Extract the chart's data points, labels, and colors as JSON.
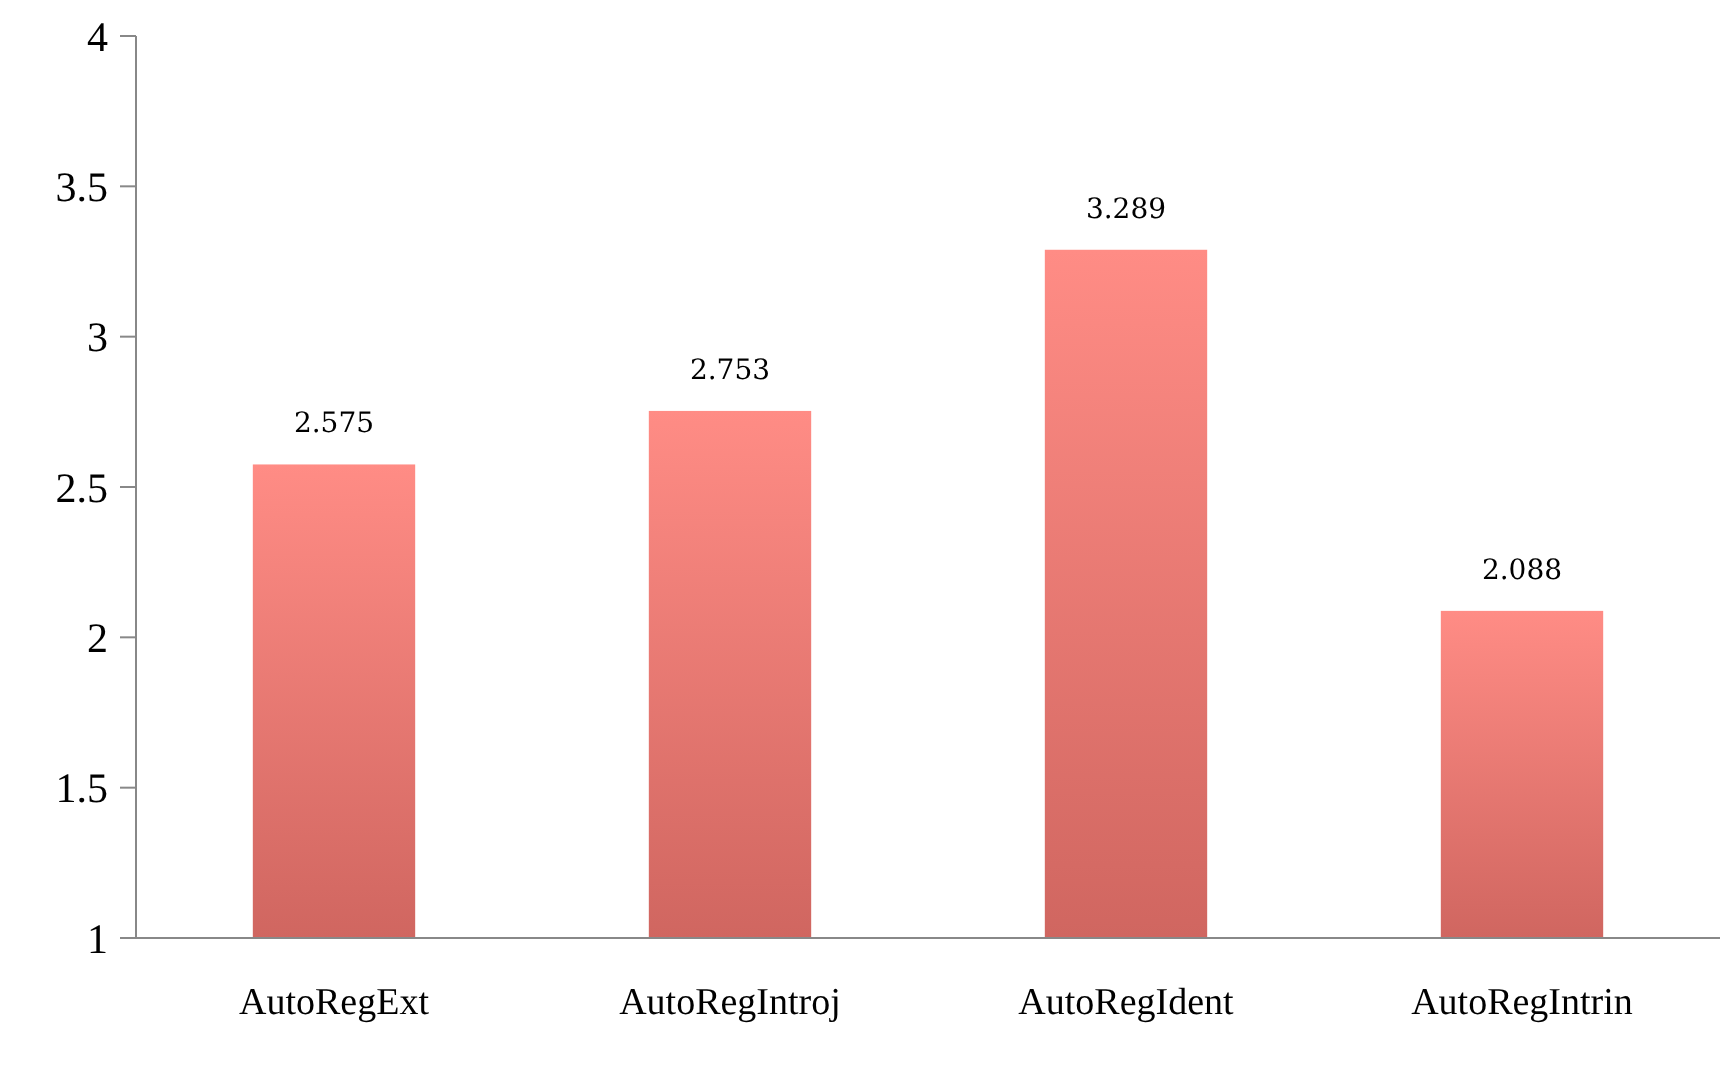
{
  "chart_data": {
    "type": "bar",
    "categories": [
      "AutoRegExt",
      "AutoRegIntroj",
      "AutoRegIdent",
      "AutoRegIntrin"
    ],
    "values": [
      2.575,
      2.753,
      3.289,
      2.088
    ],
    "color": "#e8716b",
    "data_labels": true,
    "ylim": [
      1,
      4
    ],
    "yticks": [
      1,
      1.5,
      2,
      2.5,
      3,
      3.5,
      4
    ],
    "grid": false
  }
}
